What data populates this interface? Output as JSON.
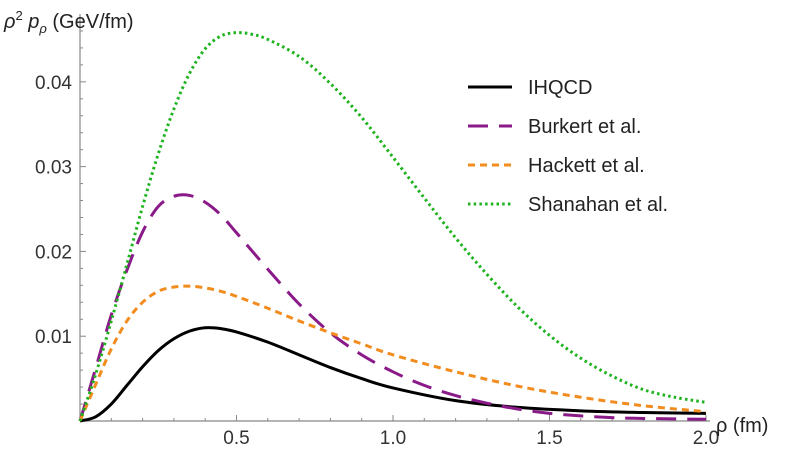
{
  "chart_data": {
    "type": "line",
    "title": "",
    "ylabel_prefix": "ρ",
    "ylabel_sup": "2",
    "ylabel_p": " p",
    "ylabel_sub": "ρ",
    "ylabel_units": " (GeV/fm)",
    "xlabel": "ρ (fm)",
    "xlim": [
      0,
      2.0
    ],
    "ylim": [
      0,
      0.048
    ],
    "x_ticks": [
      0.5,
      1.0,
      1.5,
      2.0
    ],
    "x_tick_labels": [
      "0.5",
      "1.0",
      "1.5",
      "2.0"
    ],
    "y_ticks": [
      0.01,
      0.02,
      0.03,
      0.04
    ],
    "y_tick_labels": [
      "0.01",
      "0.02",
      "0.03",
      "0.04"
    ],
    "legend_position": "top-right",
    "grid": false,
    "series": [
      {
        "name": "IHQCD",
        "color": "#000000",
        "dash": "solid",
        "x": [
          0,
          0.05,
          0.1,
          0.15,
          0.2,
          0.25,
          0.3,
          0.35,
          0.4,
          0.45,
          0.5,
          0.6,
          0.7,
          0.8,
          0.9,
          1.0,
          1.2,
          1.4,
          1.6,
          1.8,
          2.0
        ],
        "values": [
          0,
          0.0005,
          0.002,
          0.0042,
          0.0064,
          0.0083,
          0.0097,
          0.0106,
          0.011,
          0.0109,
          0.0105,
          0.0093,
          0.0078,
          0.0063,
          0.005,
          0.0039,
          0.0024,
          0.0016,
          0.0012,
          0.001,
          0.0009
        ]
      },
      {
        "name": "Burkert et al.",
        "color": "#8B1A89",
        "dash": "long-dash",
        "x": [
          0,
          0.05,
          0.1,
          0.15,
          0.2,
          0.25,
          0.3,
          0.35,
          0.4,
          0.45,
          0.5,
          0.6,
          0.7,
          0.8,
          0.9,
          1.0,
          1.1,
          1.2,
          1.3,
          1.4,
          1.5,
          1.6,
          1.7,
          1.8,
          2.0
        ],
        "values": [
          0,
          0.0062,
          0.0125,
          0.0178,
          0.0223,
          0.0253,
          0.0265,
          0.0266,
          0.0258,
          0.0243,
          0.0222,
          0.0179,
          0.0138,
          0.0104,
          0.0078,
          0.0058,
          0.0042,
          0.003,
          0.0021,
          0.0014,
          0.0009,
          0.0006,
          0.0004,
          0.0003,
          0.0002
        ]
      },
      {
        "name": "Hackett et al.",
        "color": "#F28C1E",
        "dash": "short-dash",
        "x": [
          0,
          0.05,
          0.1,
          0.15,
          0.2,
          0.25,
          0.3,
          0.35,
          0.4,
          0.45,
          0.5,
          0.6,
          0.7,
          0.8,
          0.9,
          1.0,
          1.2,
          1.4,
          1.6,
          1.8,
          2.0
        ],
        "values": [
          0,
          0.0043,
          0.0085,
          0.0118,
          0.014,
          0.0153,
          0.0158,
          0.0159,
          0.0157,
          0.0153,
          0.0147,
          0.0133,
          0.0118,
          0.0104,
          0.0091,
          0.0078,
          0.0058,
          0.0041,
          0.0028,
          0.0018,
          0.0011
        ]
      },
      {
        "name": "Shanahan et al.",
        "color": "#1DB31D",
        "dash": "dotted",
        "x": [
          0,
          0.05,
          0.1,
          0.15,
          0.2,
          0.25,
          0.3,
          0.35,
          0.4,
          0.45,
          0.5,
          0.55,
          0.6,
          0.7,
          0.8,
          0.9,
          1.0,
          1.1,
          1.2,
          1.3,
          1.4,
          1.5,
          1.6,
          1.7,
          1.8,
          1.9,
          2.0
        ],
        "values": [
          0,
          0.0055,
          0.0118,
          0.0185,
          0.0253,
          0.0315,
          0.0368,
          0.041,
          0.0439,
          0.0454,
          0.0458,
          0.0456,
          0.045,
          0.043,
          0.0398,
          0.0358,
          0.0311,
          0.0263,
          0.0216,
          0.0173,
          0.0134,
          0.0101,
          0.0074,
          0.0053,
          0.0037,
          0.0028,
          0.0022
        ]
      }
    ]
  }
}
